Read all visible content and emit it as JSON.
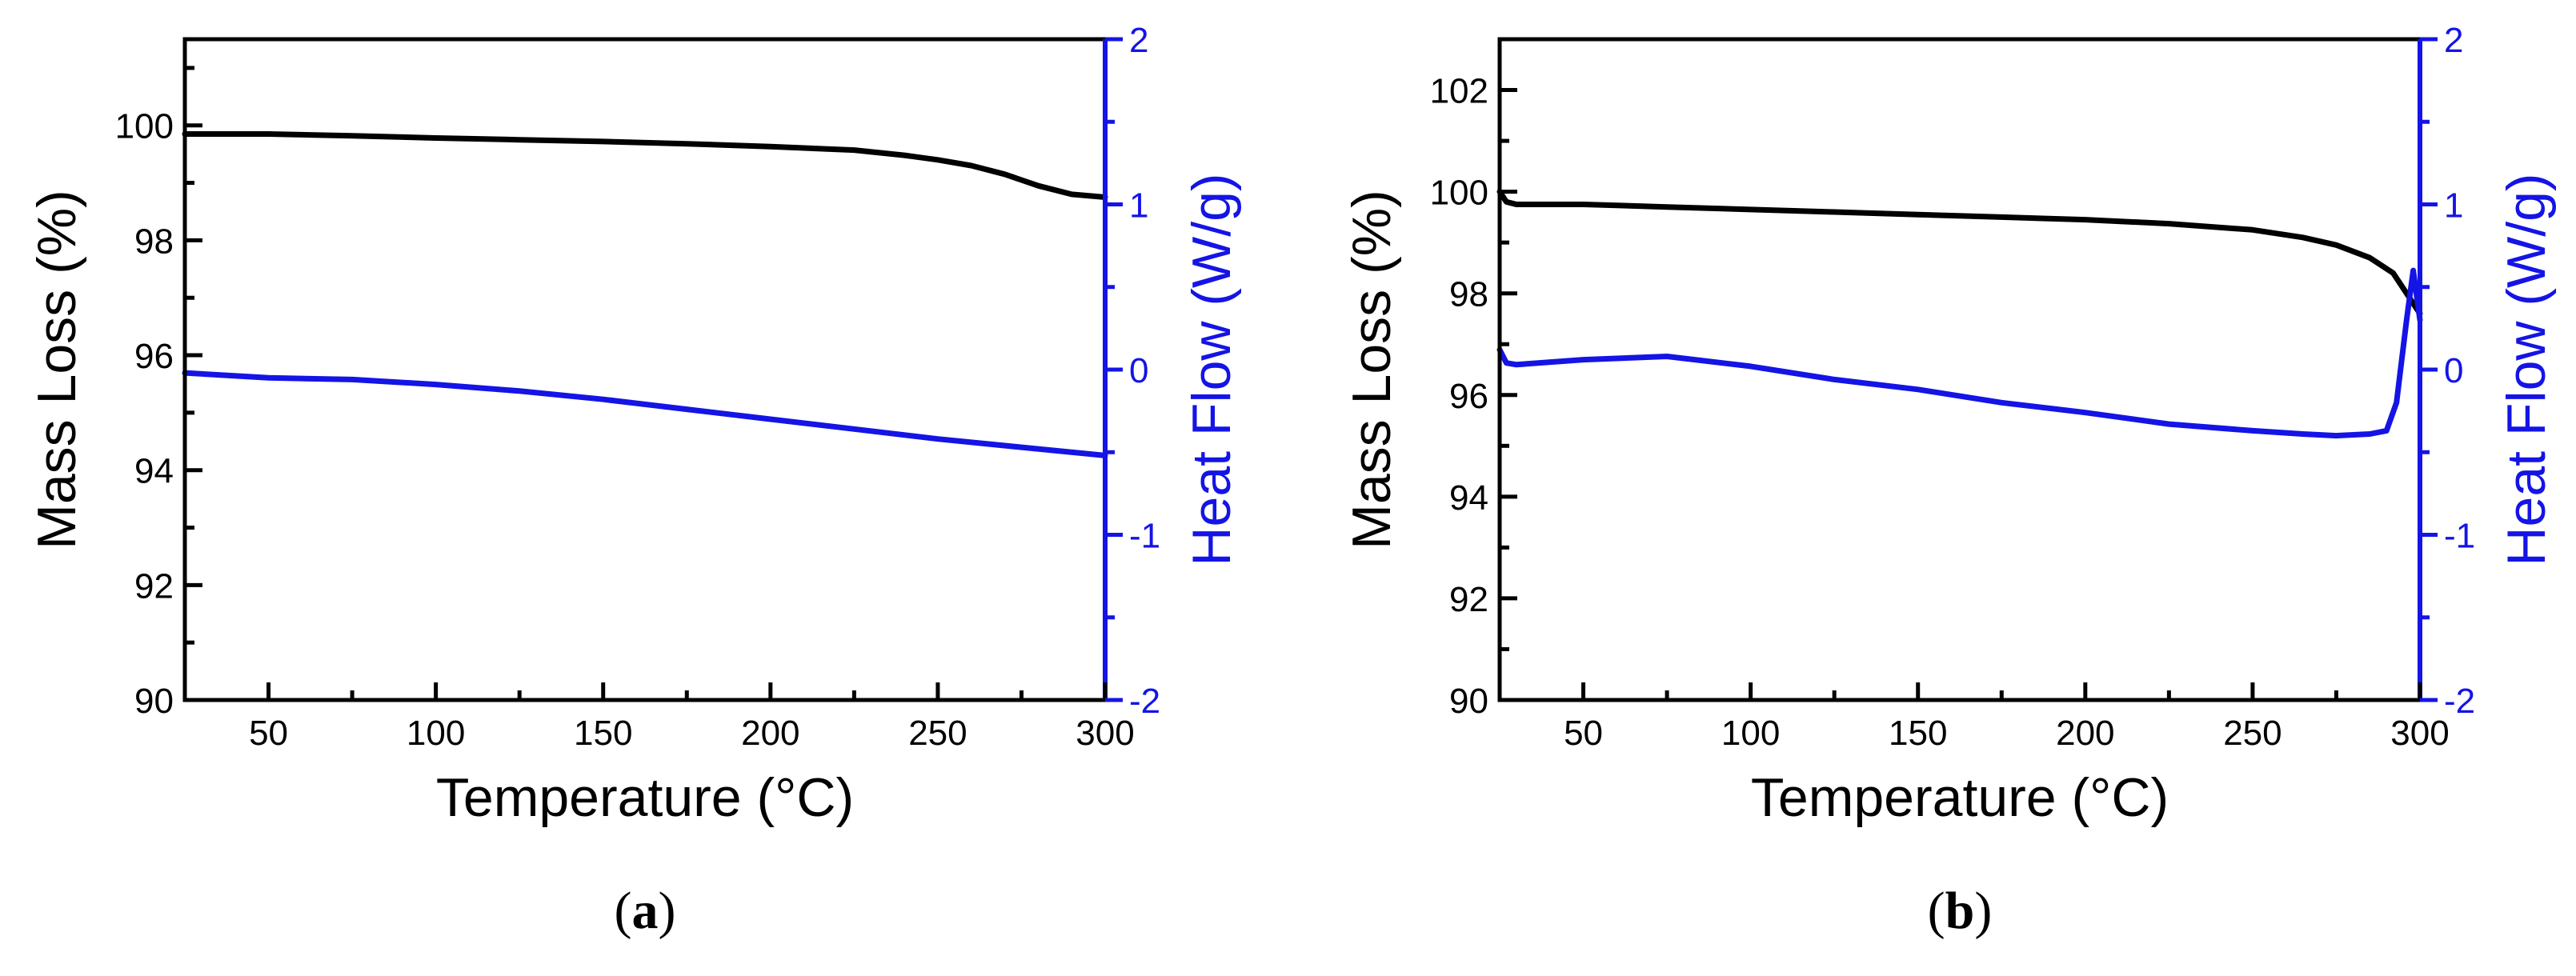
{
  "figure": {
    "colors": {
      "left_axis": "#000000",
      "right_axis": "#1414e6",
      "mass_series": "#000000",
      "heat_series": "#1414e6"
    }
  },
  "chart_data": [
    {
      "type": "line",
      "panel_label": "(a)",
      "panel_letter": "a",
      "xlabel": "Temperature (°C)",
      "ylabel": "Mass Loss (%)",
      "y2label": "Heat Flow (W/g)",
      "xlim": [
        25,
        300
      ],
      "ylim": [
        90,
        101.5
      ],
      "y2lim": [
        -2,
        2
      ],
      "xticks": [
        50,
        100,
        150,
        200,
        250,
        300
      ],
      "yticks": [
        90,
        92,
        94,
        96,
        98,
        100
      ],
      "y2ticks": [
        -2,
        -1,
        0,
        1,
        2
      ],
      "series": [
        {
          "name": "Mass Loss",
          "axis": "left",
          "color": "#000000",
          "x": [
            25,
            50,
            75,
            100,
            125,
            150,
            175,
            200,
            225,
            240,
            250,
            260,
            270,
            280,
            290,
            300
          ],
          "y": [
            99.85,
            99.85,
            99.82,
            99.78,
            99.75,
            99.72,
            99.68,
            99.63,
            99.57,
            99.48,
            99.4,
            99.3,
            99.15,
            98.95,
            98.8,
            98.75
          ]
        },
        {
          "name": "Heat Flow",
          "axis": "right",
          "color": "#1414e6",
          "x": [
            25,
            50,
            75,
            100,
            125,
            150,
            175,
            200,
            225,
            250,
            275,
            300
          ],
          "y": [
            -0.02,
            -0.05,
            -0.06,
            -0.09,
            -0.13,
            -0.18,
            -0.24,
            -0.3,
            -0.36,
            -0.42,
            -0.47,
            -0.52
          ]
        }
      ]
    },
    {
      "type": "line",
      "panel_label": "(b)",
      "panel_letter": "b",
      "xlabel": "Temperature (°C)",
      "ylabel": "Mass Loss (%)",
      "y2label": "Heat Flow (W/g)",
      "xlim": [
        25,
        300
      ],
      "ylim": [
        90,
        103
      ],
      "y2lim": [
        -2,
        2
      ],
      "xticks": [
        50,
        100,
        150,
        200,
        250,
        300
      ],
      "yticks": [
        90,
        92,
        94,
        96,
        98,
        100,
        102
      ],
      "y2ticks": [
        -2,
        -1,
        0,
        1,
        2
      ],
      "series": [
        {
          "name": "Mass Loss",
          "axis": "left",
          "color": "#000000",
          "x": [
            25,
            27,
            30,
            50,
            75,
            100,
            125,
            150,
            175,
            200,
            225,
            250,
            265,
            275,
            285,
            292,
            296,
            300
          ],
          "y": [
            100.0,
            99.8,
            99.75,
            99.75,
            99.7,
            99.65,
            99.6,
            99.55,
            99.5,
            99.45,
            99.37,
            99.25,
            99.1,
            98.95,
            98.7,
            98.4,
            98.0,
            97.6
          ]
        },
        {
          "name": "Heat Flow",
          "axis": "right",
          "color": "#1414e6",
          "x": [
            25,
            27,
            30,
            50,
            75,
            100,
            125,
            150,
            175,
            200,
            225,
            250,
            265,
            275,
            285,
            290,
            293,
            296,
            298,
            300
          ],
          "y": [
            0.12,
            0.04,
            0.03,
            0.06,
            0.08,
            0.02,
            -0.06,
            -0.12,
            -0.2,
            -0.26,
            -0.33,
            -0.37,
            -0.39,
            -0.4,
            -0.39,
            -0.37,
            -0.2,
            0.3,
            0.6,
            0.3
          ]
        }
      ]
    }
  ]
}
